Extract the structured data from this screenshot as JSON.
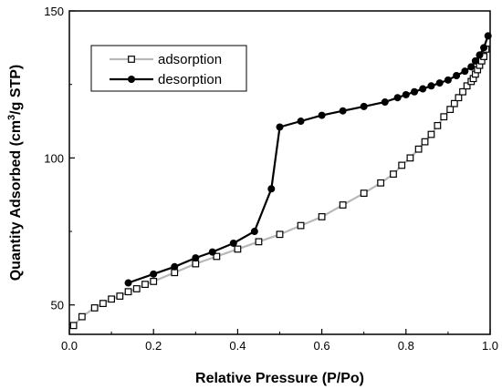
{
  "chart_data": {
    "type": "line",
    "xlabel": "Relative Pressure (P/Po)",
    "ylabel_prefix": "Quantity Adsorbed (cm",
    "ylabel_sup": "3",
    "ylabel_suffix": "/g STP)",
    "xlim": [
      0.0,
      1.0
    ],
    "ylim": [
      40,
      150
    ],
    "x_ticks": [
      0.0,
      0.2,
      0.4,
      0.6,
      0.8,
      1.0
    ],
    "x_tick_labels": [
      "0.0",
      "0.2",
      "0.4",
      "0.6",
      "0.8",
      "1.0"
    ],
    "y_ticks": [
      50,
      100,
      150
    ],
    "y_tick_labels": [
      "50",
      "100",
      "150"
    ],
    "grid": false,
    "legend_position": "top-left",
    "series": [
      {
        "name": "adsorption",
        "marker": "open-square",
        "line_color": "#b8b8b8",
        "marker_color": "#000000",
        "x": [
          0.01,
          0.03,
          0.06,
          0.08,
          0.1,
          0.12,
          0.14,
          0.16,
          0.18,
          0.2,
          0.25,
          0.3,
          0.35,
          0.4,
          0.45,
          0.5,
          0.55,
          0.6,
          0.65,
          0.7,
          0.74,
          0.77,
          0.79,
          0.81,
          0.83,
          0.845,
          0.86,
          0.875,
          0.89,
          0.905,
          0.915,
          0.925,
          0.935,
          0.945,
          0.955,
          0.96,
          0.965,
          0.97,
          0.975,
          0.98,
          0.985,
          0.99
        ],
        "y": [
          43,
          46,
          49,
          50.5,
          52,
          53,
          54.5,
          55.5,
          57,
          58,
          61,
          64,
          66.5,
          69,
          71.5,
          74,
          77,
          80,
          84,
          88,
          91.5,
          94.5,
          97.5,
          100,
          103,
          105.5,
          108,
          111,
          114,
          116.5,
          118.5,
          120.5,
          122.5,
          124.5,
          126,
          127,
          128.5,
          130,
          131.5,
          133,
          134.5,
          137
        ]
      },
      {
        "name": "desorption",
        "marker": "filled-circle",
        "line_color": "#000000",
        "marker_color": "#000000",
        "x": [
          0.995,
          0.985,
          0.975,
          0.965,
          0.955,
          0.94,
          0.92,
          0.9,
          0.88,
          0.86,
          0.84,
          0.82,
          0.8,
          0.78,
          0.75,
          0.7,
          0.65,
          0.6,
          0.55,
          0.5,
          0.48,
          0.44,
          0.39,
          0.34,
          0.3,
          0.25,
          0.2,
          0.14
        ],
        "y": [
          141.5,
          137.5,
          135,
          133,
          131,
          129.5,
          128,
          126.5,
          125.5,
          124.5,
          123.5,
          122.5,
          121.5,
          120.5,
          119,
          117.5,
          116,
          114.5,
          112.5,
          110.5,
          89.5,
          75,
          71,
          68,
          66,
          63,
          60.5,
          57.5
        ]
      }
    ]
  }
}
